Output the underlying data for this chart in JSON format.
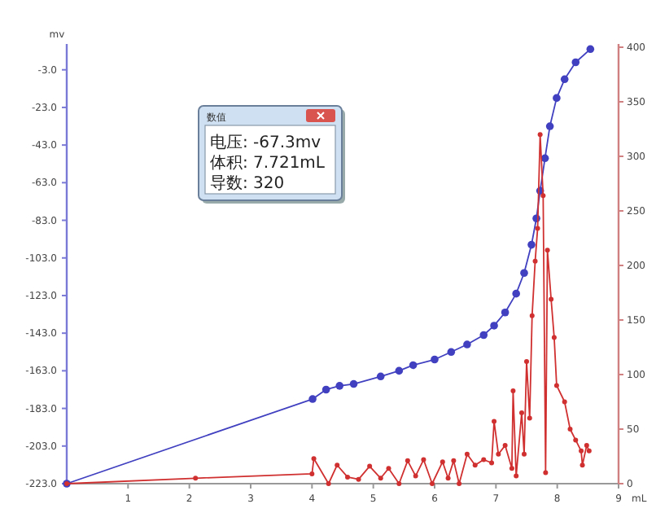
{
  "chart_data": {
    "type": "line",
    "xlabel": "mL",
    "ylabel": "mv",
    "xlim": [
      0,
      9
    ],
    "xticks": [
      1,
      2,
      3,
      4,
      5,
      6,
      7,
      8,
      9
    ],
    "ylim": [
      -223,
      9
    ],
    "yticks": [
      {
        "value": -223,
        "label": "-223.0"
      },
      {
        "value": -203,
        "label": "-203.0"
      },
      {
        "value": -183,
        "label": "-183.0"
      },
      {
        "value": -163,
        "label": "-163.0"
      },
      {
        "value": -143,
        "label": "-143.0"
      },
      {
        "value": -123,
        "label": "-123.0"
      },
      {
        "value": -103,
        "label": "-103.0"
      },
      {
        "value": -83,
        "label": "-83.0"
      },
      {
        "value": -63,
        "label": "-63.0"
      },
      {
        "value": -43,
        "label": "-43.0"
      },
      {
        "value": -23,
        "label": "-23.0"
      },
      {
        "value": -3,
        "label": "-3.0"
      }
    ],
    "y2lim": [
      0,
      400
    ],
    "y2ticks": [
      0,
      50,
      100,
      150,
      200,
      250,
      300,
      350,
      400
    ],
    "grid": false,
    "marker": "circle",
    "annotations": [
      "数值",
      "电压: -67.3mv",
      "体积: 7.721mL",
      "导数: 320"
    ],
    "series": [
      {
        "color": "#4040c0",
        "x": [
          0,
          4.01,
          4.23,
          4.45,
          4.68,
          5.12,
          5.42,
          5.65,
          6.0,
          6.27,
          6.53,
          6.8,
          6.97,
          7.15,
          7.33,
          7.46,
          7.58,
          7.66,
          7.721,
          7.8,
          7.88,
          7.99,
          8.12,
          8.3,
          8.54
        ],
        "values": [
          -223,
          -178,
          -173,
          -171,
          -170,
          -166,
          -163,
          -160,
          -157,
          -153,
          -149,
          -144,
          -139,
          -132,
          -122,
          -111,
          -96,
          -82,
          -67.3,
          -50,
          -33,
          -18,
          -8,
          1,
          8
        ]
      },
      {
        "color": "#d03030",
        "axis": "y2",
        "x": [
          0,
          2.1,
          4.0,
          4.03,
          4.27,
          4.41,
          4.58,
          4.76,
          4.94,
          5.12,
          5.25,
          5.42,
          5.56,
          5.69,
          5.82,
          5.96,
          6.13,
          6.22,
          6.31,
          6.4,
          6.53,
          6.66,
          6.8,
          6.93,
          6.97,
          7.04,
          7.15,
          7.26,
          7.28,
          7.33,
          7.42,
          7.46,
          7.5,
          7.55,
          7.59,
          7.64,
          7.68,
          7.721,
          7.77,
          7.81,
          7.84,
          7.9,
          7.95,
          7.99,
          8.12,
          8.21,
          8.3,
          8.39,
          8.41,
          8.48,
          8.52
        ],
        "values": [
          0,
          5,
          9,
          23,
          0,
          17,
          6,
          4,
          16,
          5,
          14,
          0,
          21,
          7,
          22,
          0,
          20,
          5,
          21,
          0,
          27,
          17,
          22,
          19,
          57,
          27,
          35,
          14,
          85,
          7,
          65,
          27,
          112,
          60,
          154,
          204,
          234,
          320,
          264,
          10,
          214,
          169,
          134,
          90,
          75,
          50,
          40,
          30,
          17,
          35,
          30
        ]
      }
    ]
  }
}
